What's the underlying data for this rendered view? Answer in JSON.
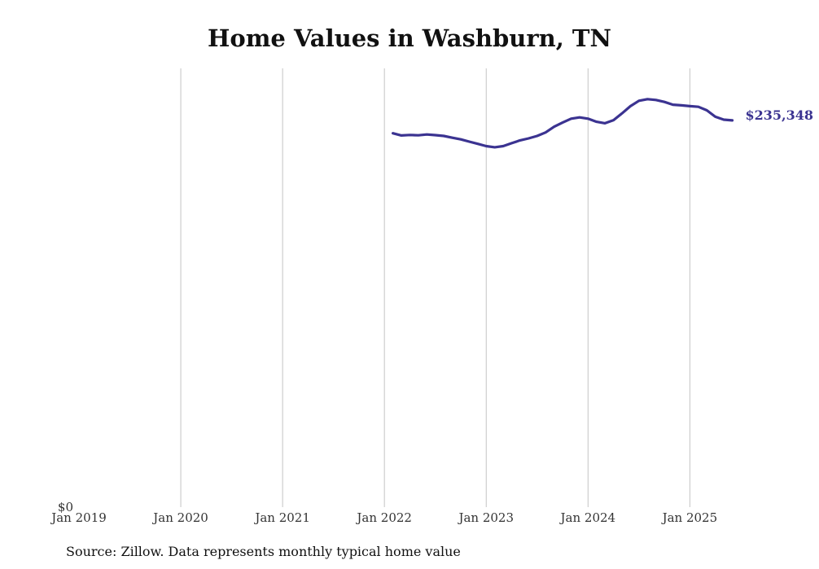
{
  "chart_data": {
    "type": "line",
    "title": "Home Values in Washburn, TN",
    "source": "Source: Zillow. Data represents monthly typical home value",
    "y_label_zero": "$0",
    "end_label": "$235,348",
    "xlim": [
      "2019-01",
      "2025-12"
    ],
    "ylim": [
      0,
      267000
    ],
    "grid": "vertical",
    "x_tick_labels": [
      "Jan 2019",
      "Jan 2020",
      "Jan 2021",
      "Jan 2022",
      "Jan 2023",
      "Jan 2024",
      "Jan 2025"
    ],
    "line_color": "#3b3391",
    "series": [
      {
        "x": [
          "2022-02",
          "2022-03",
          "2022-04",
          "2022-05",
          "2022-06",
          "2022-07",
          "2022-08",
          "2022-09",
          "2022-10",
          "2022-11",
          "2022-12",
          "2023-01",
          "2023-02",
          "2023-03",
          "2023-04",
          "2023-05",
          "2023-06",
          "2023-07",
          "2023-08",
          "2023-09",
          "2023-10",
          "2023-11",
          "2023-12",
          "2024-01",
          "2024-02",
          "2024-03",
          "2024-04",
          "2024-05",
          "2024-06",
          "2024-07",
          "2024-08",
          "2024-09",
          "2024-10",
          "2024-11",
          "2024-12",
          "2025-01",
          "2025-02",
          "2025-03",
          "2025-04",
          "2025-05",
          "2025-06"
        ],
        "values": [
          227500,
          226200,
          226500,
          226300,
          226800,
          226400,
          225900,
          224800,
          223800,
          222400,
          221100,
          219700,
          219000,
          219700,
          221500,
          223200,
          224400,
          225900,
          228000,
          231500,
          234000,
          236400,
          237200,
          236400,
          234500,
          233600,
          235500,
          239600,
          244000,
          247300,
          248300,
          247800,
          246600,
          244900,
          244500,
          244000,
          243600,
          241500,
          237600,
          235800,
          235348
        ]
      }
    ]
  }
}
